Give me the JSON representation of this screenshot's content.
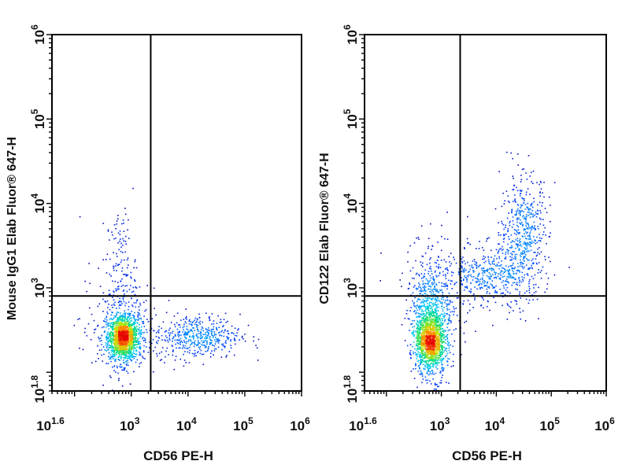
{
  "chart_data": [
    {
      "type": "scatter",
      "plot_style": "flow cytometry density dot plot",
      "xlabel": "CD56 PE-H",
      "ylabel": "Mouse IgG1 Elab Fluor® 647-H",
      "x_scale": "log",
      "y_scale": "log",
      "xlim": [
        40,
        1000000
      ],
      "ylim": [
        60,
        1000000
      ],
      "x_ticks": [
        {
          "value": 40,
          "base": "10",
          "exp": "1.6"
        },
        {
          "value": 1000,
          "base": "10",
          "exp": "3"
        },
        {
          "value": 10000,
          "base": "10",
          "exp": "4"
        },
        {
          "value": 100000,
          "base": "10",
          "exp": "5"
        },
        {
          "value": 1000000,
          "base": "10",
          "exp": "6"
        }
      ],
      "y_ticks": [
        {
          "value": 63,
          "base": "10",
          "exp": "1.8"
        },
        {
          "value": 1000,
          "base": "10",
          "exp": "3"
        },
        {
          "value": 10000,
          "base": "10",
          "exp": "4"
        },
        {
          "value": 100000,
          "base": "10",
          "exp": "5"
        },
        {
          "value": 1000000,
          "base": "10",
          "exp": "6"
        }
      ],
      "quadrant_gate": {
        "x": 2200,
        "y": 800
      },
      "populations": [
        {
          "center": [
            700,
            260
          ],
          "spread": [
            0.13,
            0.12
          ],
          "count": 900
        },
        {
          "center": [
            700,
            260
          ],
          "spread": [
            0.17,
            0.16
          ],
          "count": 600
        },
        {
          "center": [
            14000,
            270
          ],
          "spread": [
            0.38,
            0.13
          ],
          "count": 480
        },
        {
          "center": [
            650,
            1700
          ],
          "spread": [
            0.13,
            0.35
          ],
          "count": 130
        },
        {
          "center": [
            600,
            400
          ],
          "spread": [
            0.35,
            0.35
          ],
          "count": 170
        }
      ],
      "grid": false
    },
    {
      "type": "scatter",
      "plot_style": "flow cytometry density dot plot",
      "xlabel": "CD56 PE-H",
      "ylabel": "CD122 Elab Fluor® 647-H",
      "x_scale": "log",
      "y_scale": "log",
      "xlim": [
        40,
        1000000
      ],
      "ylim": [
        60,
        1000000
      ],
      "x_ticks": [
        {
          "value": 40,
          "base": "10",
          "exp": "1.6"
        },
        {
          "value": 1000,
          "base": "10",
          "exp": "3"
        },
        {
          "value": 10000,
          "base": "10",
          "exp": "4"
        },
        {
          "value": 100000,
          "base": "10",
          "exp": "5"
        },
        {
          "value": 1000000,
          "base": "10",
          "exp": "6"
        }
      ],
      "y_ticks": [
        {
          "value": 63,
          "base": "10",
          "exp": "1.8"
        },
        {
          "value": 1000,
          "base": "10",
          "exp": "3"
        },
        {
          "value": 10000,
          "base": "10",
          "exp": "4"
        },
        {
          "value": 100000,
          "base": "10",
          "exp": "5"
        },
        {
          "value": 1000000,
          "base": "10",
          "exp": "6"
        }
      ],
      "quadrant_gate": {
        "x": 2200,
        "y": 800
      },
      "populations": [
        {
          "center": [
            620,
            230
          ],
          "spread": [
            0.13,
            0.16
          ],
          "count": 1100
        },
        {
          "center": [
            620,
            400
          ],
          "spread": [
            0.18,
            0.33
          ],
          "count": 700
        },
        {
          "center": [
            32000,
            5000
          ],
          "spread": [
            0.22,
            0.32
          ],
          "count": 420
        },
        {
          "center": [
            15000,
            1500
          ],
          "spread": [
            0.32,
            0.22
          ],
          "count": 320
        },
        {
          "center": [
            4000,
            1300
          ],
          "spread": [
            0.25,
            0.15
          ],
          "count": 150
        },
        {
          "center": [
            900,
            1000
          ],
          "spread": [
            0.35,
            0.35
          ],
          "count": 200
        }
      ],
      "grid": false
    }
  ]
}
